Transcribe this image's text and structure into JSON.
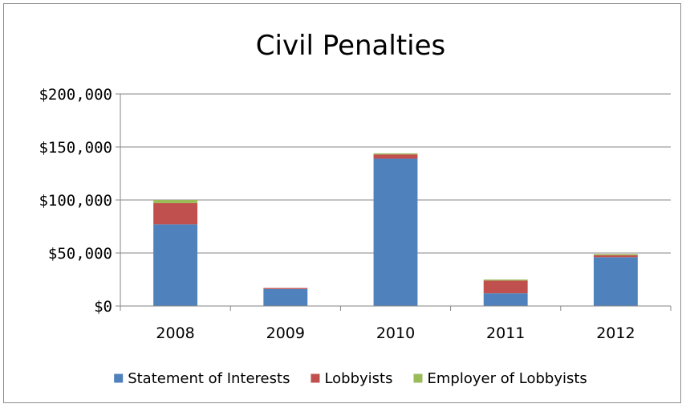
{
  "chart_data": {
    "type": "bar",
    "stacked": true,
    "title": "Civil Penalties",
    "xlabel": "",
    "ylabel": "",
    "categories": [
      "2008",
      "2009",
      "2010",
      "2011",
      "2012"
    ],
    "ylim": [
      0,
      200000
    ],
    "yticks": [
      0,
      50000,
      100000,
      150000,
      200000
    ],
    "ytick_labels": [
      "$0",
      "$50,000",
      "$100,000",
      "$150,000",
      "$200,000"
    ],
    "grid": true,
    "legend_position": "bottom",
    "series": [
      {
        "name": "Statement of Interests",
        "color": "#4f81bd",
        "values": [
          77000,
          16000,
          139000,
          12000,
          46000
        ]
      },
      {
        "name": "Lobbyists",
        "color": "#c0504d",
        "values": [
          20000,
          1000,
          4000,
          12000,
          2000
        ]
      },
      {
        "name": "Employer of Lobbyists",
        "color": "#9bbb59",
        "values": [
          3000,
          0,
          1000,
          1000,
          1000
        ]
      }
    ]
  }
}
